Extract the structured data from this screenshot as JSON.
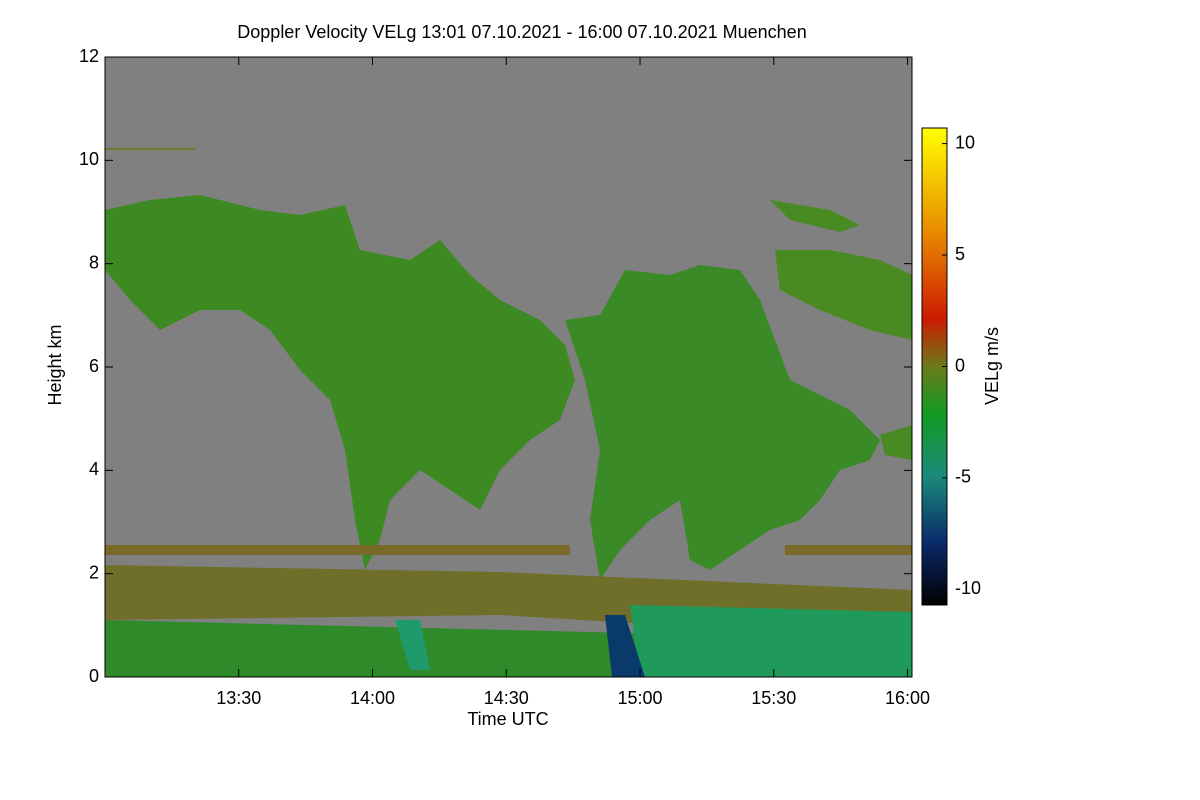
{
  "chart_data": {
    "type": "heatmap",
    "title": "Doppler Velocity VELg   13:01 07.10.2021 - 16:00 07.10.2021 Muenchen",
    "x_label": "Time UTC",
    "y_label": "Height km",
    "colorbar_label": "VELg m/s",
    "xlim": [
      780,
      961
    ],
    "xticks": [
      {
        "value": 810,
        "label": "13:30"
      },
      {
        "value": 840,
        "label": "14:00"
      },
      {
        "value": 870,
        "label": "14:30"
      },
      {
        "value": 900,
        "label": "15:00"
      },
      {
        "value": 930,
        "label": "15:30"
      },
      {
        "value": 960,
        "label": "16:00"
      }
    ],
    "ylim": [
      0,
      12
    ],
    "yticks": [
      0,
      2,
      4,
      6,
      8,
      10,
      12
    ],
    "clim": [
      -10.7,
      10.7
    ],
    "cticks": [
      -10,
      -5,
      0,
      5,
      10
    ]
  }
}
